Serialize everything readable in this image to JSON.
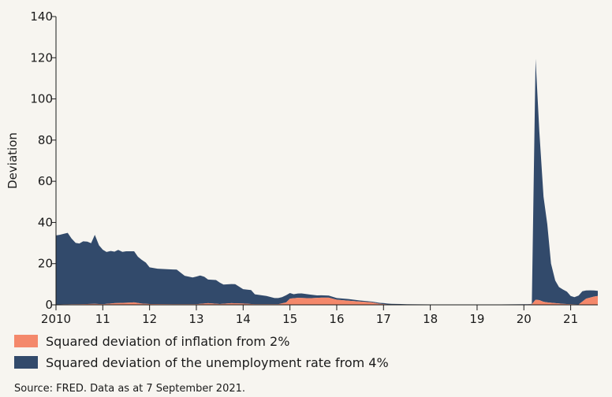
{
  "chart_data": {
    "type": "area",
    "stacked": true,
    "ylabel": "Deviation",
    "xlabel": "",
    "ylim": [
      0,
      140
    ],
    "xlim": [
      2010.0,
      2021.58
    ],
    "y_ticks": [
      0,
      20,
      40,
      60,
      80,
      100,
      120,
      140
    ],
    "x_ticks": [
      {
        "value": 2010,
        "label": "2010"
      },
      {
        "value": 2011,
        "label": "11"
      },
      {
        "value": 2012,
        "label": "12"
      },
      {
        "value": 2013,
        "label": "13"
      },
      {
        "value": 2014,
        "label": "14"
      },
      {
        "value": 2015,
        "label": "15"
      },
      {
        "value": 2016,
        "label": "16"
      },
      {
        "value": 2017,
        "label": "17"
      },
      {
        "value": 2018,
        "label": "18"
      },
      {
        "value": 2019,
        "label": "19"
      },
      {
        "value": 2020,
        "label": "20"
      },
      {
        "value": 2021,
        "label": "21"
      }
    ],
    "grid": false,
    "legend_position": "bottom",
    "series": [
      {
        "name": "Squared deviation of inflation from 2%",
        "color": "#f4886b",
        "points": [
          [
            2010.0,
            0.2
          ],
          [
            2010.5,
            0.3
          ],
          [
            2010.83,
            0.5
          ],
          [
            2011.0,
            0.3
          ],
          [
            2011.25,
            0.8
          ],
          [
            2011.5,
            1.0
          ],
          [
            2011.67,
            1.2
          ],
          [
            2011.83,
            0.6
          ],
          [
            2012.0,
            0.4
          ],
          [
            2012.5,
            0.3
          ],
          [
            2013.0,
            0.3
          ],
          [
            2013.25,
            0.8
          ],
          [
            2013.5,
            0.4
          ],
          [
            2013.75,
            0.8
          ],
          [
            2014.0,
            0.6
          ],
          [
            2014.25,
            0.3
          ],
          [
            2014.75,
            0.3
          ],
          [
            2014.92,
            1.2
          ],
          [
            2015.0,
            3.0
          ],
          [
            2015.17,
            3.4
          ],
          [
            2015.42,
            3.2
          ],
          [
            2015.67,
            3.5
          ],
          [
            2015.83,
            3.5
          ],
          [
            2016.0,
            2.5
          ],
          [
            2016.25,
            2.0
          ],
          [
            2016.5,
            1.6
          ],
          [
            2016.75,
            1.2
          ],
          [
            2016.92,
            0.5
          ],
          [
            2017.08,
            0.2
          ],
          [
            2017.5,
            0.1
          ],
          [
            2018.0,
            0.1
          ],
          [
            2018.5,
            0.1
          ],
          [
            2019.0,
            0.1
          ],
          [
            2019.5,
            0.1
          ],
          [
            2020.0,
            0.2
          ],
          [
            2020.08,
            0.2
          ],
          [
            2020.17,
            0.3
          ],
          [
            2020.25,
            2.5
          ],
          [
            2020.33,
            2.3
          ],
          [
            2020.42,
            1.5
          ],
          [
            2020.5,
            1.2
          ],
          [
            2020.67,
            0.8
          ],
          [
            2020.83,
            0.5
          ],
          [
            2021.0,
            0.3
          ],
          [
            2021.17,
            0.2
          ],
          [
            2021.33,
            3.0
          ],
          [
            2021.5,
            4.0
          ],
          [
            2021.58,
            4.3
          ]
        ]
      },
      {
        "name": "Squared deviation of the unemployment rate from 4%",
        "color": "#324a6b",
        "points": [
          [
            2010.0,
            33.5
          ],
          [
            2010.08,
            33.8
          ],
          [
            2010.17,
            34.3
          ],
          [
            2010.25,
            34.7
          ],
          [
            2010.33,
            32.0
          ],
          [
            2010.42,
            29.8
          ],
          [
            2010.5,
            29.5
          ],
          [
            2010.58,
            30.5
          ],
          [
            2010.67,
            30.3
          ],
          [
            2010.75,
            29.5
          ],
          [
            2010.83,
            33.5
          ],
          [
            2010.92,
            28.5
          ],
          [
            2011.0,
            26.5
          ],
          [
            2011.08,
            25.2
          ],
          [
            2011.17,
            25.5
          ],
          [
            2011.25,
            25.0
          ],
          [
            2011.33,
            25.8
          ],
          [
            2011.42,
            24.8
          ],
          [
            2011.5,
            25.0
          ],
          [
            2011.67,
            24.8
          ],
          [
            2011.75,
            22.5
          ],
          [
            2011.92,
            20.0
          ],
          [
            2012.0,
            17.8
          ],
          [
            2012.17,
            17.2
          ],
          [
            2012.33,
            17.0
          ],
          [
            2012.58,
            16.8
          ],
          [
            2012.75,
            13.8
          ],
          [
            2012.92,
            13.0
          ],
          [
            2013.08,
            13.8
          ],
          [
            2013.17,
            13.0
          ],
          [
            2013.25,
            11.5
          ],
          [
            2013.42,
            11.5
          ],
          [
            2013.58,
            9.3
          ],
          [
            2013.83,
            9.3
          ],
          [
            2014.0,
            7.0
          ],
          [
            2014.17,
            6.8
          ],
          [
            2014.25,
            4.8
          ],
          [
            2014.5,
            4.0
          ],
          [
            2014.67,
            3.0
          ],
          [
            2014.83,
            3.0
          ],
          [
            2014.92,
            3.5
          ],
          [
            2015.08,
            2.0
          ],
          [
            2015.25,
            2.2
          ],
          [
            2015.42,
            1.8
          ],
          [
            2015.58,
            1.2
          ],
          [
            2015.83,
            1.0
          ],
          [
            2016.0,
            0.8
          ],
          [
            2016.25,
            0.8
          ],
          [
            2016.5,
            0.5
          ],
          [
            2016.75,
            0.4
          ],
          [
            2017.0,
            0.5
          ],
          [
            2017.17,
            0.3
          ],
          [
            2017.5,
            0.2
          ],
          [
            2018.0,
            0.1
          ],
          [
            2018.5,
            0.1
          ],
          [
            2019.0,
            0.1
          ],
          [
            2019.5,
            0.1
          ],
          [
            2020.0,
            0.1
          ],
          [
            2020.08,
            0.1
          ],
          [
            2020.17,
            0.2
          ],
          [
            2020.25,
            117.0
          ],
          [
            2020.33,
            82.0
          ],
          [
            2020.42,
            51.0
          ],
          [
            2020.5,
            38.0
          ],
          [
            2020.58,
            19.0
          ],
          [
            2020.67,
            11.0
          ],
          [
            2020.75,
            8.0
          ],
          [
            2020.83,
            7.0
          ],
          [
            2020.92,
            6.0
          ],
          [
            2021.0,
            4.0
          ],
          [
            2021.08,
            3.5
          ],
          [
            2021.17,
            4.3
          ],
          [
            2021.25,
            5.0
          ],
          [
            2021.33,
            4.0
          ],
          [
            2021.42,
            3.5
          ],
          [
            2021.5,
            3.0
          ],
          [
            2021.58,
            2.5
          ]
        ]
      }
    ]
  },
  "source": "Source: FRED. Data as at 7 September 2021."
}
